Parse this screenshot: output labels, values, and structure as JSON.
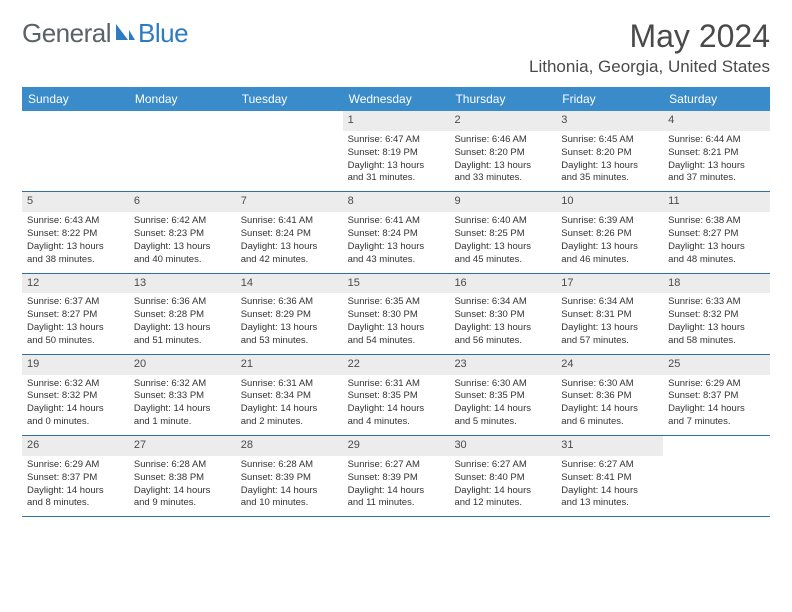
{
  "logo": {
    "word1": "General",
    "word2": "Blue"
  },
  "title": "May 2024",
  "location": "Lithonia, Georgia, United States",
  "colors": {
    "header_bg": "#3a8bc9",
    "header_text": "#ffffff",
    "daynum_bg": "#ececec",
    "border": "#2e6fa6",
    "logo_gray": "#5a6268",
    "logo_blue": "#2e7cc0",
    "body_text": "#333333"
  },
  "fonts": {
    "title_size": 32,
    "location_size": 17,
    "dow_size": 12,
    "daynum_size": 11,
    "body_size": 9.5
  },
  "days_of_week": [
    "Sunday",
    "Monday",
    "Tuesday",
    "Wednesday",
    "Thursday",
    "Friday",
    "Saturday"
  ],
  "weeks": [
    [
      {
        "n": "",
        "sr": "",
        "ss": "",
        "dl1": "",
        "dl2": ""
      },
      {
        "n": "",
        "sr": "",
        "ss": "",
        "dl1": "",
        "dl2": ""
      },
      {
        "n": "",
        "sr": "",
        "ss": "",
        "dl1": "",
        "dl2": ""
      },
      {
        "n": "1",
        "sr": "Sunrise: 6:47 AM",
        "ss": "Sunset: 8:19 PM",
        "dl1": "Daylight: 13 hours",
        "dl2": "and 31 minutes."
      },
      {
        "n": "2",
        "sr": "Sunrise: 6:46 AM",
        "ss": "Sunset: 8:20 PM",
        "dl1": "Daylight: 13 hours",
        "dl2": "and 33 minutes."
      },
      {
        "n": "3",
        "sr": "Sunrise: 6:45 AM",
        "ss": "Sunset: 8:20 PM",
        "dl1": "Daylight: 13 hours",
        "dl2": "and 35 minutes."
      },
      {
        "n": "4",
        "sr": "Sunrise: 6:44 AM",
        "ss": "Sunset: 8:21 PM",
        "dl1": "Daylight: 13 hours",
        "dl2": "and 37 minutes."
      }
    ],
    [
      {
        "n": "5",
        "sr": "Sunrise: 6:43 AM",
        "ss": "Sunset: 8:22 PM",
        "dl1": "Daylight: 13 hours",
        "dl2": "and 38 minutes."
      },
      {
        "n": "6",
        "sr": "Sunrise: 6:42 AM",
        "ss": "Sunset: 8:23 PM",
        "dl1": "Daylight: 13 hours",
        "dl2": "and 40 minutes."
      },
      {
        "n": "7",
        "sr": "Sunrise: 6:41 AM",
        "ss": "Sunset: 8:24 PM",
        "dl1": "Daylight: 13 hours",
        "dl2": "and 42 minutes."
      },
      {
        "n": "8",
        "sr": "Sunrise: 6:41 AM",
        "ss": "Sunset: 8:24 PM",
        "dl1": "Daylight: 13 hours",
        "dl2": "and 43 minutes."
      },
      {
        "n": "9",
        "sr": "Sunrise: 6:40 AM",
        "ss": "Sunset: 8:25 PM",
        "dl1": "Daylight: 13 hours",
        "dl2": "and 45 minutes."
      },
      {
        "n": "10",
        "sr": "Sunrise: 6:39 AM",
        "ss": "Sunset: 8:26 PM",
        "dl1": "Daylight: 13 hours",
        "dl2": "and 46 minutes."
      },
      {
        "n": "11",
        "sr": "Sunrise: 6:38 AM",
        "ss": "Sunset: 8:27 PM",
        "dl1": "Daylight: 13 hours",
        "dl2": "and 48 minutes."
      }
    ],
    [
      {
        "n": "12",
        "sr": "Sunrise: 6:37 AM",
        "ss": "Sunset: 8:27 PM",
        "dl1": "Daylight: 13 hours",
        "dl2": "and 50 minutes."
      },
      {
        "n": "13",
        "sr": "Sunrise: 6:36 AM",
        "ss": "Sunset: 8:28 PM",
        "dl1": "Daylight: 13 hours",
        "dl2": "and 51 minutes."
      },
      {
        "n": "14",
        "sr": "Sunrise: 6:36 AM",
        "ss": "Sunset: 8:29 PM",
        "dl1": "Daylight: 13 hours",
        "dl2": "and 53 minutes."
      },
      {
        "n": "15",
        "sr": "Sunrise: 6:35 AM",
        "ss": "Sunset: 8:30 PM",
        "dl1": "Daylight: 13 hours",
        "dl2": "and 54 minutes."
      },
      {
        "n": "16",
        "sr": "Sunrise: 6:34 AM",
        "ss": "Sunset: 8:30 PM",
        "dl1": "Daylight: 13 hours",
        "dl2": "and 56 minutes."
      },
      {
        "n": "17",
        "sr": "Sunrise: 6:34 AM",
        "ss": "Sunset: 8:31 PM",
        "dl1": "Daylight: 13 hours",
        "dl2": "and 57 minutes."
      },
      {
        "n": "18",
        "sr": "Sunrise: 6:33 AM",
        "ss": "Sunset: 8:32 PM",
        "dl1": "Daylight: 13 hours",
        "dl2": "and 58 minutes."
      }
    ],
    [
      {
        "n": "19",
        "sr": "Sunrise: 6:32 AM",
        "ss": "Sunset: 8:32 PM",
        "dl1": "Daylight: 14 hours",
        "dl2": "and 0 minutes."
      },
      {
        "n": "20",
        "sr": "Sunrise: 6:32 AM",
        "ss": "Sunset: 8:33 PM",
        "dl1": "Daylight: 14 hours",
        "dl2": "and 1 minute."
      },
      {
        "n": "21",
        "sr": "Sunrise: 6:31 AM",
        "ss": "Sunset: 8:34 PM",
        "dl1": "Daylight: 14 hours",
        "dl2": "and 2 minutes."
      },
      {
        "n": "22",
        "sr": "Sunrise: 6:31 AM",
        "ss": "Sunset: 8:35 PM",
        "dl1": "Daylight: 14 hours",
        "dl2": "and 4 minutes."
      },
      {
        "n": "23",
        "sr": "Sunrise: 6:30 AM",
        "ss": "Sunset: 8:35 PM",
        "dl1": "Daylight: 14 hours",
        "dl2": "and 5 minutes."
      },
      {
        "n": "24",
        "sr": "Sunrise: 6:30 AM",
        "ss": "Sunset: 8:36 PM",
        "dl1": "Daylight: 14 hours",
        "dl2": "and 6 minutes."
      },
      {
        "n": "25",
        "sr": "Sunrise: 6:29 AM",
        "ss": "Sunset: 8:37 PM",
        "dl1": "Daylight: 14 hours",
        "dl2": "and 7 minutes."
      }
    ],
    [
      {
        "n": "26",
        "sr": "Sunrise: 6:29 AM",
        "ss": "Sunset: 8:37 PM",
        "dl1": "Daylight: 14 hours",
        "dl2": "and 8 minutes."
      },
      {
        "n": "27",
        "sr": "Sunrise: 6:28 AM",
        "ss": "Sunset: 8:38 PM",
        "dl1": "Daylight: 14 hours",
        "dl2": "and 9 minutes."
      },
      {
        "n": "28",
        "sr": "Sunrise: 6:28 AM",
        "ss": "Sunset: 8:39 PM",
        "dl1": "Daylight: 14 hours",
        "dl2": "and 10 minutes."
      },
      {
        "n": "29",
        "sr": "Sunrise: 6:27 AM",
        "ss": "Sunset: 8:39 PM",
        "dl1": "Daylight: 14 hours",
        "dl2": "and 11 minutes."
      },
      {
        "n": "30",
        "sr": "Sunrise: 6:27 AM",
        "ss": "Sunset: 8:40 PM",
        "dl1": "Daylight: 14 hours",
        "dl2": "and 12 minutes."
      },
      {
        "n": "31",
        "sr": "Sunrise: 6:27 AM",
        "ss": "Sunset: 8:41 PM",
        "dl1": "Daylight: 14 hours",
        "dl2": "and 13 minutes."
      },
      {
        "n": "",
        "sr": "",
        "ss": "",
        "dl1": "",
        "dl2": ""
      }
    ]
  ]
}
